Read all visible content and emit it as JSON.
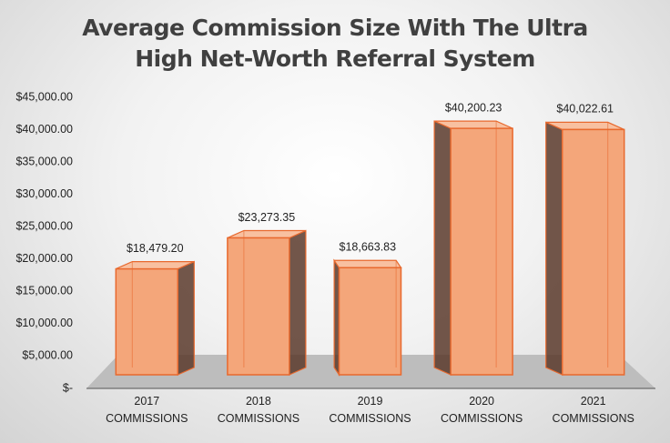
{
  "chart_data": {
    "type": "bar3d",
    "title": "Average Commission Size With The Ultra High Net-Worth Referral System",
    "categories": [
      "2017 COMMISSIONS",
      "2018 COMMISSIONS",
      "2019 COMMISSIONS",
      "2020 COMMISSIONS",
      "2021 COMMISSIONS"
    ],
    "values": [
      18479.2,
      23273.35,
      18663.83,
      40200.23,
      40022.61
    ],
    "value_labels": [
      "$18,479.20",
      "$23,273.35",
      "$18,663.83",
      "$40,200.23",
      "$40,022.61"
    ],
    "color": "#f4a67a",
    "ylim": [
      0,
      45000
    ],
    "yticks": [
      {
        "value": 0,
        "label": "$-"
      },
      {
        "value": 5000,
        "label": "$5,000.00"
      },
      {
        "value": 10000,
        "label": "$10,000.00"
      },
      {
        "value": 15000,
        "label": "$15,000.00"
      },
      {
        "value": 20000,
        "label": "$20,000.00"
      },
      {
        "value": 25000,
        "label": "$25,000.00"
      },
      {
        "value": 30000,
        "label": "$30,000.00"
      },
      {
        "value": 35000,
        "label": "$35,000.00"
      },
      {
        "value": 40000,
        "label": "$40,000.00"
      },
      {
        "value": 45000,
        "label": "$45,000.00"
      }
    ]
  }
}
